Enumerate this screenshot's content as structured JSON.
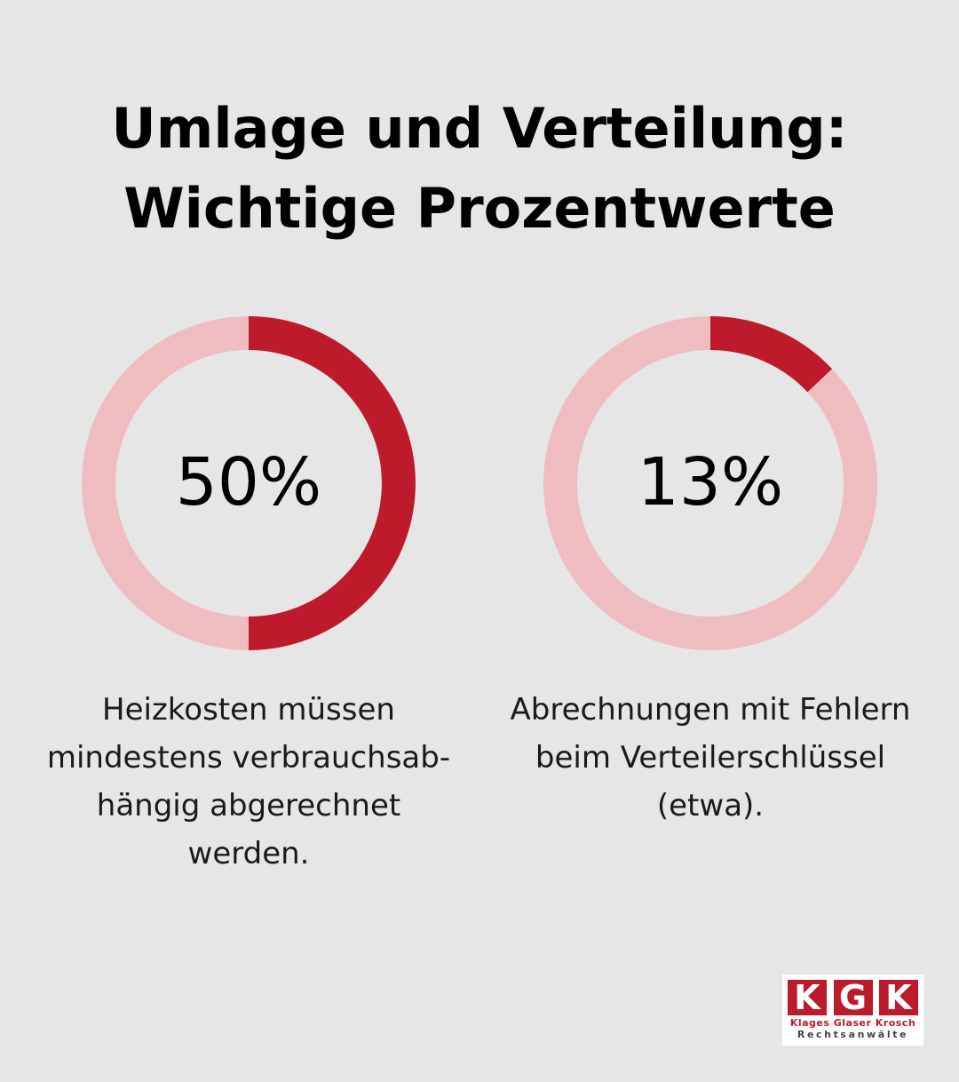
{
  "title": {
    "line1": "Umlage und Verteilung:",
    "line2": "Wichtige Prozentwerte"
  },
  "colors": {
    "background": "#e6e6e6",
    "accent": "#bd1a2c",
    "track": "#efbcc0"
  },
  "chart_data": [
    {
      "type": "pie",
      "style": "donut",
      "value": 50,
      "label": "50%",
      "caption": "Heizkosten müssen mindestens verbrauchsab-hängig abgerechnet werden.",
      "caption_lines": [
        "Heizkosten müssen",
        "mindestens verbrauchsab-",
        "hängig abgerechnet",
        "werden."
      ]
    },
    {
      "type": "pie",
      "style": "donut",
      "value": 13,
      "label": "13%",
      "caption": "Abrechnungen mit Fehlern beim Verteilerschlüssel (etwa).",
      "caption_lines": [
        "Abrechnungen mit Fehlern",
        "beim Verteilerschlüssel",
        "(etwa)."
      ]
    }
  ],
  "logo": {
    "letters": [
      "K",
      "G",
      "K"
    ],
    "names": "Klages Glaser Krosch",
    "subtitle": "Rechtsanwälte"
  }
}
